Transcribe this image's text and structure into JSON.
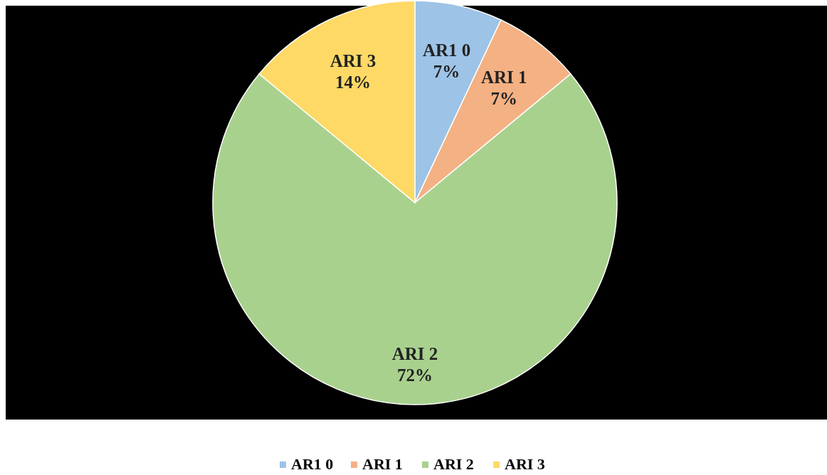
{
  "chart_data": {
    "type": "pie",
    "categories": [
      "AR1 0",
      "ARI 1",
      "ARI 2",
      "ARI 3"
    ],
    "values": [
      7,
      7,
      72,
      14
    ],
    "value_labels": [
      "7%",
      "7%",
      "72%",
      "14%"
    ],
    "colors": [
      "#9dc3e6",
      "#f4b183",
      "#a9d18e",
      "#ffd966"
    ],
    "legend": "bottom"
  }
}
